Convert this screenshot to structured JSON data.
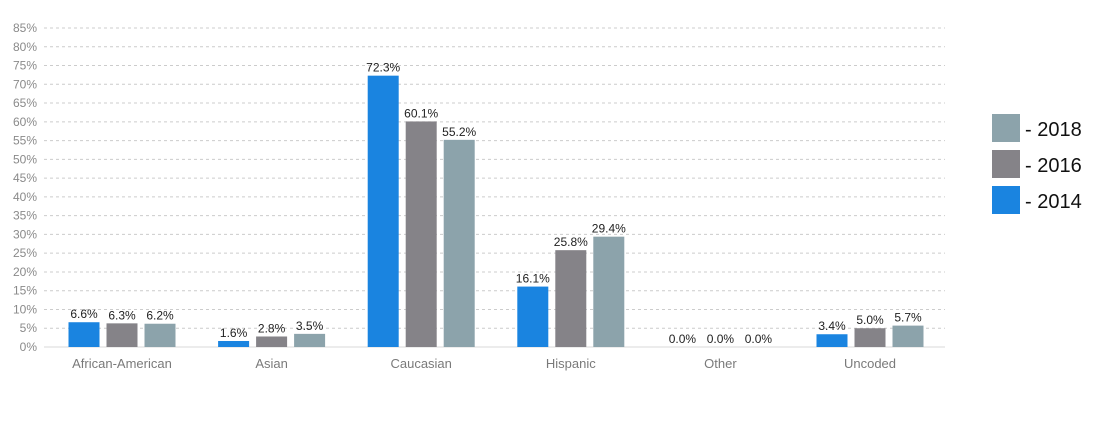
{
  "chart_data": {
    "type": "bar",
    "categories": [
      "African-American",
      "Asian",
      "Caucasian",
      "Hispanic",
      "Other",
      "Uncoded"
    ],
    "series": [
      {
        "name": "- 2014",
        "color": "#1a84e0",
        "values": [
          6.6,
          1.6,
          72.3,
          16.1,
          0.0,
          3.4
        ],
        "labels": [
          "6.6%",
          "1.6%",
          "72.3%",
          "16.1%",
          "0.0%",
          "3.4%"
        ]
      },
      {
        "name": "- 2016",
        "color": "#858388",
        "values": [
          6.3,
          2.8,
          60.1,
          25.8,
          0.0,
          5.0
        ],
        "labels": [
          "6.3%",
          "2.8%",
          "60.1%",
          "25.8%",
          "0.0%",
          "5.0%"
        ]
      },
      {
        "name": "- 2018",
        "color": "#8ca3ab",
        "values": [
          6.2,
          3.5,
          55.2,
          29.4,
          0.0,
          5.7
        ],
        "labels": [
          "6.2%",
          "3.5%",
          "55.2%",
          "29.4%",
          "0.0%",
          "5.7%"
        ]
      }
    ],
    "ylim": [
      0,
      85
    ],
    "yticks": [
      0,
      5,
      10,
      15,
      20,
      25,
      30,
      35,
      40,
      45,
      50,
      55,
      60,
      65,
      70,
      75,
      80,
      85
    ],
    "ytick_labels": [
      "0%",
      "5%",
      "10%",
      "15%",
      "20%",
      "25%",
      "30%",
      "35%",
      "40%",
      "45%",
      "50%",
      "55%",
      "60%",
      "65%",
      "70%",
      "75%",
      "80%",
      "85%"
    ],
    "grid": true,
    "legend": {
      "position": "right",
      "order": [
        "- 2018",
        "- 2016",
        "- 2014"
      ]
    }
  }
}
